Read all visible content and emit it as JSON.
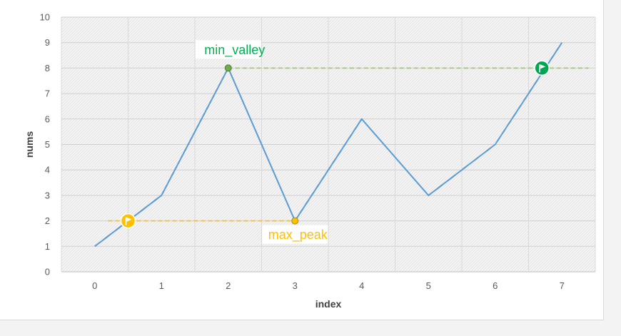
{
  "chart_data": {
    "type": "line",
    "x": [
      0,
      1,
      2,
      3,
      4,
      5,
      6,
      7
    ],
    "series": [
      {
        "values": [
          1,
          3,
          8,
          2,
          6,
          3,
          5,
          9
        ],
        "color": "#5b9bd5"
      }
    ],
    "xlabel": "index",
    "ylabel": "nums",
    "xlim": [
      0,
      7
    ],
    "ylim": [
      0,
      10
    ],
    "y_ticks": [
      0,
      1,
      2,
      3,
      4,
      5,
      6,
      7,
      8,
      9,
      10
    ],
    "grid": true,
    "plot_background": "hatched light gray",
    "annotations": [
      {
        "label": "min_valley",
        "color": "#00b050",
        "point_x": 2,
        "value": 8,
        "line_from_x": 2,
        "line_to_x": 7.4,
        "flag_x": 6.7
      },
      {
        "label": "max_peak",
        "color": "#ffc000",
        "point_x": 3,
        "value": 2,
        "line_from_x": 0.2,
        "line_to_x": 3,
        "flag_x": 0.5
      }
    ],
    "colors": {
      "line": "#5b9bd5",
      "green_marker": "#70ad47",
      "green_dash": "#92d050",
      "green_text": "#00b050",
      "yellow": "#ffc000"
    }
  }
}
